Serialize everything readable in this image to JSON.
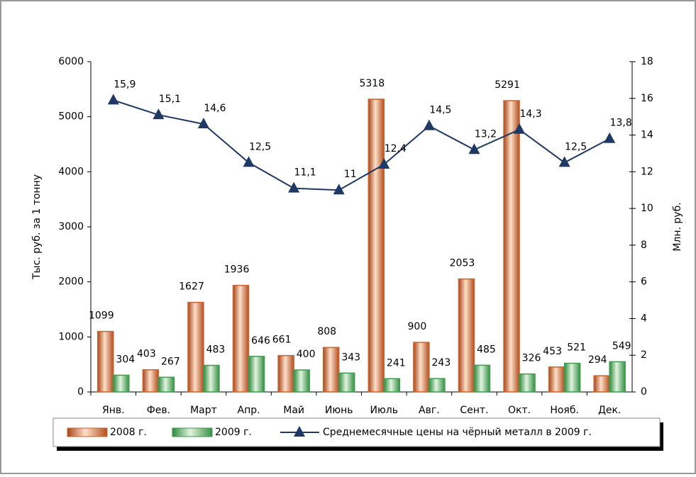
{
  "chart_data": {
    "type": "bar",
    "categories": [
      "Янв.",
      "Фев.",
      "Март",
      "Апр.",
      "Май",
      "Июнь",
      "Июль",
      "Авг.",
      "Сент.",
      "Окт.",
      "Нояб.",
      "Дек."
    ],
    "series": [
      {
        "name": "2008 г.",
        "color": "#c8642e",
        "values": [
          1099,
          403,
          1627,
          1936,
          661,
          808,
          5318,
          900,
          2053,
          5291,
          453,
          294
        ]
      },
      {
        "name": "2009 г.",
        "color": "#3f9c4e",
        "values": [
          304,
          267,
          483,
          646,
          400,
          343,
          241,
          243,
          485,
          326,
          521,
          549
        ]
      },
      {
        "name": "Среднемесячные цены на чёрный металл в 2009 г.",
        "color": "#1f3864",
        "axis": "y2",
        "type": "line",
        "values": [
          15.9,
          15.1,
          14.6,
          12.5,
          11.1,
          11,
          12.4,
          14.5,
          13.2,
          14.3,
          12.5,
          13.8
        ],
        "value_labels": [
          "15,9",
          "15,1",
          "14,6",
          "12,5",
          "11,1",
          "11",
          "12,4",
          "14,5",
          "13,2",
          "14,3",
          "12,5",
          "13,8"
        ]
      }
    ],
    "y_label": "Тыс. руб. за 1 тонну",
    "y2_label": "Млн. руб.",
    "ylim": [
      0,
      6000
    ],
    "yticks": [
      0,
      1000,
      2000,
      3000,
      4000,
      5000,
      6000
    ],
    "y2lim": [
      0,
      18
    ],
    "y2ticks": [
      0,
      2,
      4,
      6,
      8,
      10,
      12,
      14,
      16,
      18
    ]
  }
}
